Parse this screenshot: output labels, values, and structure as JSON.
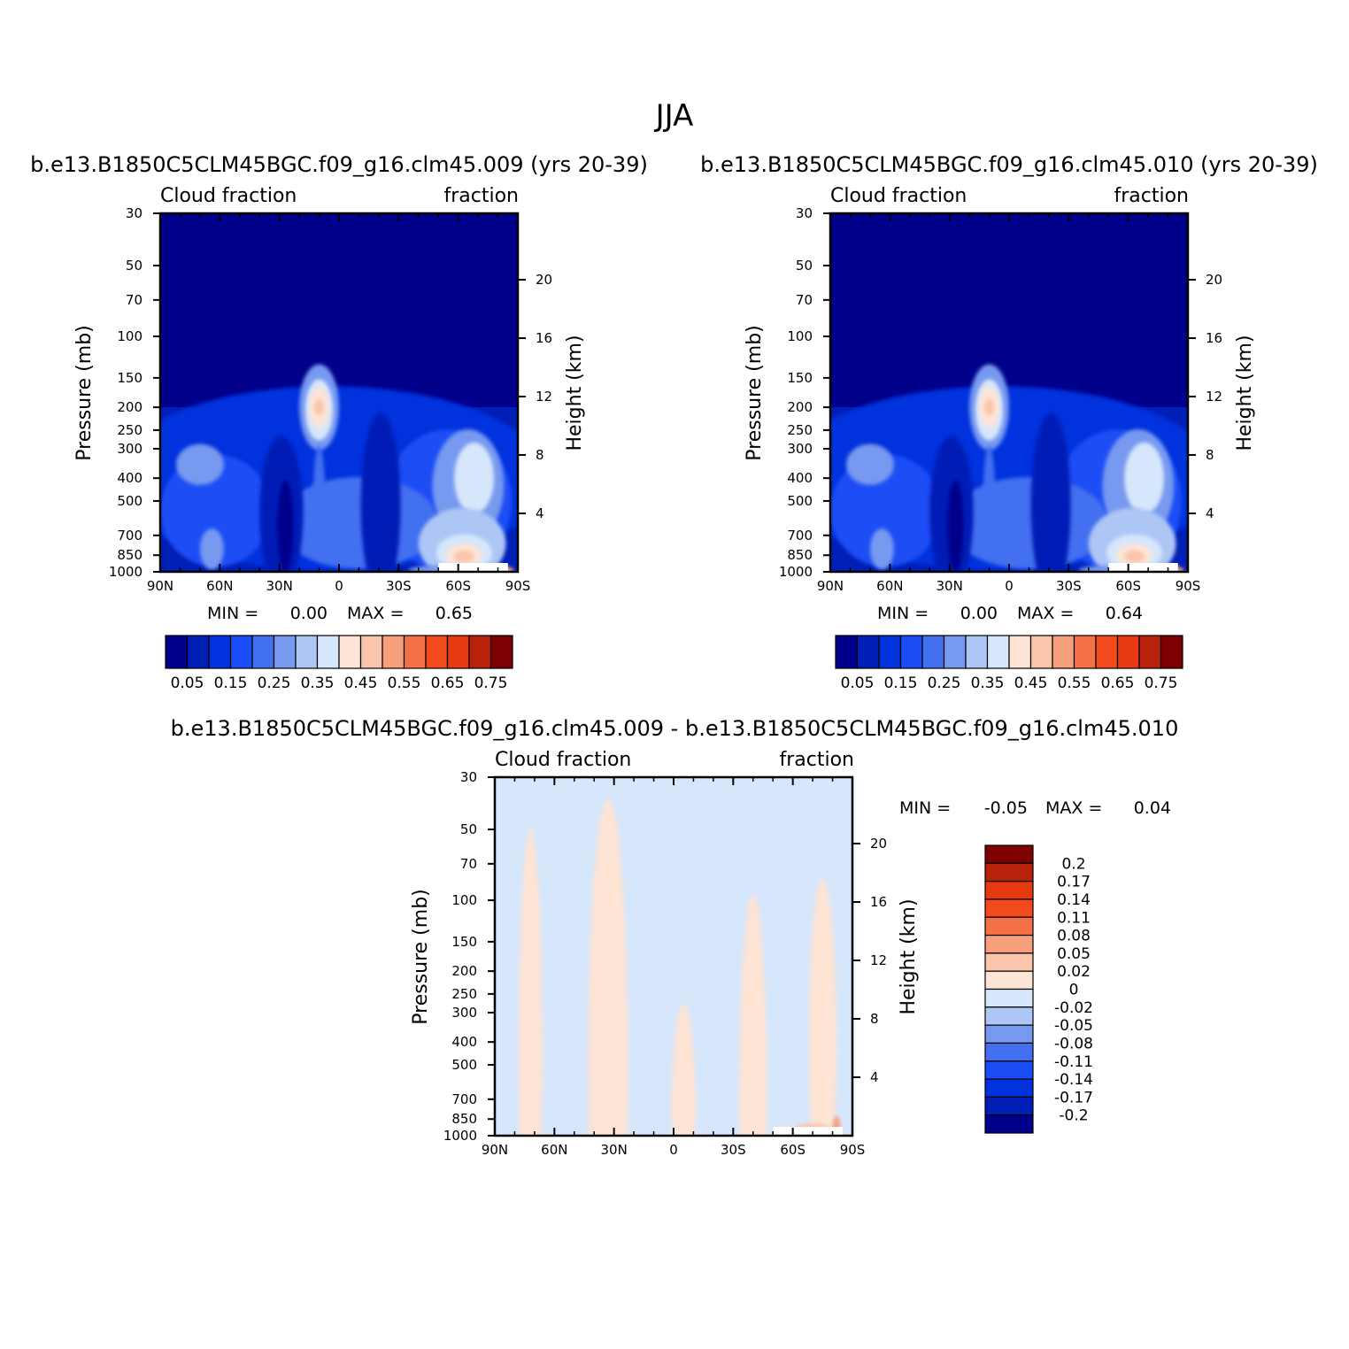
{
  "page_title": "JJA",
  "panels": [
    {
      "title": "b.e13.B1850C5CLM45BGC.f09_g16.clm45.009 (yrs 20-39)",
      "left_label": "Cloud fraction",
      "right_label": "fraction",
      "ylabel": "Pressure (mb)",
      "y2label": "Height (km)",
      "min_label": "MIN =",
      "min_value": "0.00",
      "max_label": "MAX =",
      "max_value": "0.65"
    },
    {
      "title": "b.e13.B1850C5CLM45BGC.f09_g16.clm45.010 (yrs 20-39)",
      "left_label": "Cloud fraction",
      "right_label": "fraction",
      "ylabel": "Pressure (mb)",
      "y2label": "Height (km)",
      "min_label": "MIN =",
      "min_value": "0.00",
      "max_label": "MAX =",
      "max_value": "0.64"
    },
    {
      "title": "b.e13.B1850C5CLM45BGC.f09_g16.clm45.009 - b.e13.B1850C5CLM45BGC.f09_g16.clm45.010",
      "left_label": "Cloud fraction",
      "right_label": "fraction",
      "ylabel": "Pressure (mb)",
      "y2label": "Height (km)",
      "min_label": "MIN =",
      "min_value": "-0.05",
      "max_label": "MAX =",
      "max_value": "0.04"
    }
  ],
  "chart_data": [
    {
      "type": "heatmap",
      "title": "b.e13.B1850C5CLM45BGC.f09_g16.clm45.009 (yrs 20-39)",
      "variable": "Cloud fraction",
      "units": "fraction",
      "xlabel": "",
      "ylabel": "Pressure (mb)",
      "y2label": "Height (km)",
      "x_ticks": [
        "90N",
        "60N",
        "30N",
        "0",
        "30S",
        "60S",
        "90S"
      ],
      "x_tick_values": [
        90,
        60,
        30,
        0,
        -30,
        -60,
        -90
      ],
      "xlim": [
        90,
        -90
      ],
      "y_ticks": [
        "30",
        "50",
        "70",
        "100",
        "150",
        "200",
        "250",
        "300",
        "400",
        "500",
        "700",
        "850",
        "1000"
      ],
      "y_tick_values": [
        30,
        50,
        70,
        100,
        150,
        200,
        250,
        300,
        400,
        500,
        700,
        850,
        1000
      ],
      "ylim": [
        1000,
        30
      ],
      "y_scale": "log",
      "y2_ticks": [
        "4",
        "8",
        "12",
        "16",
        "20"
      ],
      "y2_tick_values": [
        4,
        8,
        12,
        16,
        20
      ],
      "colorbar_levels": [
        0.05,
        0.1,
        0.15,
        0.2,
        0.25,
        0.3,
        0.35,
        0.4,
        0.45,
        0.5,
        0.55,
        0.6,
        0.65,
        0.7,
        0.75
      ],
      "colorbar_labels": [
        "0.05",
        "0.15",
        "0.25",
        "0.35",
        "0.45",
        "0.55",
        "0.65",
        "0.75"
      ],
      "colorbar_colors": [
        "#00008b",
        "#001fb6",
        "#0033dd",
        "#1a4df5",
        "#4270f0",
        "#7799ef",
        "#adc6f5",
        "#d6e6fb",
        "#fde4d4",
        "#fbc5ab",
        "#f7a07b",
        "#f47147",
        "#f24a1c",
        "#e73a10",
        "#b8220b",
        "#7f0000"
      ],
      "min": 0.0,
      "max": 0.65
    },
    {
      "type": "heatmap",
      "title": "b.e13.B1850C5CLM45BGC.f09_g16.clm45.010 (yrs 20-39)",
      "variable": "Cloud fraction",
      "units": "fraction",
      "xlabel": "",
      "ylabel": "Pressure (mb)",
      "y2label": "Height (km)",
      "x_ticks": [
        "90N",
        "60N",
        "30N",
        "0",
        "30S",
        "60S",
        "90S"
      ],
      "x_tick_values": [
        90,
        60,
        30,
        0,
        -30,
        -60,
        -90
      ],
      "xlim": [
        90,
        -90
      ],
      "y_ticks": [
        "30",
        "50",
        "70",
        "100",
        "150",
        "200",
        "250",
        "300",
        "400",
        "500",
        "700",
        "850",
        "1000"
      ],
      "y_tick_values": [
        30,
        50,
        70,
        100,
        150,
        200,
        250,
        300,
        400,
        500,
        700,
        850,
        1000
      ],
      "ylim": [
        1000,
        30
      ],
      "y_scale": "log",
      "y2_ticks": [
        "4",
        "8",
        "12",
        "16",
        "20"
      ],
      "y2_tick_values": [
        4,
        8,
        12,
        16,
        20
      ],
      "colorbar_levels": [
        0.05,
        0.1,
        0.15,
        0.2,
        0.25,
        0.3,
        0.35,
        0.4,
        0.45,
        0.5,
        0.55,
        0.6,
        0.65,
        0.7,
        0.75
      ],
      "colorbar_labels": [
        "0.05",
        "0.15",
        "0.25",
        "0.35",
        "0.45",
        "0.55",
        "0.65",
        "0.75"
      ],
      "colorbar_colors": [
        "#00008b",
        "#001fb6",
        "#0033dd",
        "#1a4df5",
        "#4270f0",
        "#7799ef",
        "#adc6f5",
        "#d6e6fb",
        "#fde4d4",
        "#fbc5ab",
        "#f7a07b",
        "#f47147",
        "#f24a1c",
        "#e73a10",
        "#b8220b",
        "#7f0000"
      ],
      "min": 0.0,
      "max": 0.64
    },
    {
      "type": "heatmap",
      "title": "b.e13.B1850C5CLM45BGC.f09_g16.clm45.009 - b.e13.B1850C5CLM45BGC.f09_g16.clm45.010",
      "variable": "Cloud fraction",
      "units": "fraction",
      "xlabel": "",
      "ylabel": "Pressure (mb)",
      "y2label": "Height (km)",
      "x_ticks": [
        "90N",
        "60N",
        "30N",
        "0",
        "30S",
        "60S",
        "90S"
      ],
      "x_tick_values": [
        90,
        60,
        30,
        0,
        -30,
        -60,
        -90
      ],
      "xlim": [
        90,
        -90
      ],
      "y_ticks": [
        "30",
        "50",
        "70",
        "100",
        "150",
        "200",
        "250",
        "300",
        "400",
        "500",
        "700",
        "850",
        "1000"
      ],
      "y_tick_values": [
        30,
        50,
        70,
        100,
        150,
        200,
        250,
        300,
        400,
        500,
        700,
        850,
        1000
      ],
      "ylim": [
        1000,
        30
      ],
      "y_scale": "log",
      "y2_ticks": [
        "4",
        "8",
        "12",
        "16",
        "20"
      ],
      "y2_tick_values": [
        4,
        8,
        12,
        16,
        20
      ],
      "colorbar_levels": [
        -0.2,
        -0.17,
        -0.14,
        -0.11,
        -0.08,
        -0.05,
        -0.02,
        0,
        0.02,
        0.05,
        0.08,
        0.11,
        0.14,
        0.17,
        0.2
      ],
      "colorbar_labels": [
        "-0.2",
        "-0.17",
        "-0.14",
        "-0.11",
        "-0.08",
        "-0.05",
        "-0.02",
        "0",
        "0.02",
        "0.05",
        "0.08",
        "0.11",
        "0.14",
        "0.17",
        "0.2"
      ],
      "colorbar_colors": [
        "#00008b",
        "#001fb6",
        "#0033dd",
        "#1a4df5",
        "#4270f0",
        "#7799ef",
        "#adc6f5",
        "#d6e6fb",
        "#fde4d4",
        "#fbc5ab",
        "#f7a07b",
        "#f47147",
        "#f24a1c",
        "#e73a10",
        "#b8220b",
        "#7f0000"
      ],
      "min": -0.05,
      "max": 0.04
    }
  ]
}
